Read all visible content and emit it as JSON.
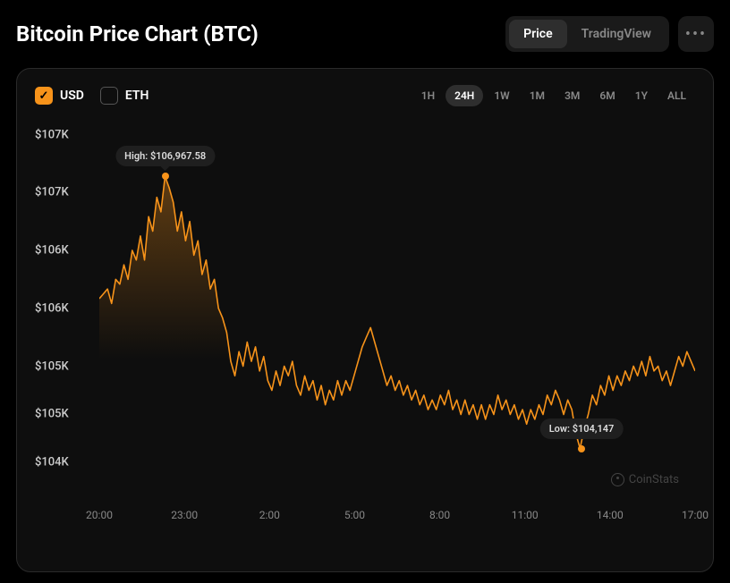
{
  "title": "Bitcoin Price Chart (BTC)",
  "view_tabs": {
    "price": "Price",
    "tradingview": "TradingView",
    "active": "price"
  },
  "currencies": [
    {
      "code": "USD",
      "checked": true
    },
    {
      "code": "ETH",
      "checked": false
    }
  ],
  "timeframes": [
    "1H",
    "24H",
    "1W",
    "1M",
    "3M",
    "6M",
    "1Y",
    "ALL"
  ],
  "active_timeframe": "24H",
  "watermark": "CoinStats",
  "chart": {
    "type": "line",
    "line_color": "#f7931a",
    "line_width": 1.6,
    "fill_gradient_top": "rgba(247,147,26,0.35)",
    "fill_gradient_bottom": "rgba(247,147,26,0)",
    "background": "#0e0e0e",
    "y_min": 103800,
    "y_max": 107600,
    "y_ticks": [
      {
        "v": 107400,
        "label": "$107K"
      },
      {
        "v": 106800,
        "label": "$107K"
      },
      {
        "v": 106200,
        "label": "$106K"
      },
      {
        "v": 105600,
        "label": "$106K"
      },
      {
        "v": 105000,
        "label": "$105K"
      },
      {
        "v": 104500,
        "label": "$105K"
      },
      {
        "v": 104000,
        "label": "$104K"
      }
    ],
    "x_ticks": [
      "20:00",
      "23:00",
      "2:00",
      "5:00",
      "8:00",
      "11:00",
      "14:00",
      "17:00"
    ],
    "high": {
      "label": "High: $106,967.58",
      "x_index": 16,
      "value": 106967.58
    },
    "low": {
      "label": "Low: $104,147",
      "x_index": 117,
      "value": 104147
    },
    "data": [
      105700,
      105750,
      105800,
      105650,
      105900,
      105850,
      106050,
      105900,
      106200,
      106100,
      106350,
      106100,
      106550,
      106400,
      106750,
      106600,
      106967,
      106850,
      106700,
      106400,
      106600,
      106300,
      106500,
      106150,
      106300,
      105950,
      106100,
      105800,
      105900,
      105600,
      105500,
      105350,
      105050,
      104900,
      105150,
      105000,
      105250,
      105050,
      105200,
      104950,
      105100,
      104850,
      104750,
      104950,
      104800,
      105000,
      104900,
      105050,
      104800,
      104700,
      104900,
      104750,
      104850,
      104650,
      104800,
      104600,
      104750,
      104650,
      104850,
      104700,
      104850,
      104750,
      104900,
      105050,
      105200,
      105300,
      105400,
      105250,
      105100,
      104950,
      104800,
      104900,
      104750,
      104850,
      104700,
      104800,
      104650,
      104750,
      104600,
      104700,
      104550,
      104650,
      104550,
      104700,
      104600,
      104750,
      104550,
      104650,
      104500,
      104650,
      104500,
      104600,
      104450,
      104600,
      104450,
      104600,
      104500,
      104700,
      104550,
      104650,
      104500,
      104600,
      104450,
      104550,
      104400,
      104550,
      104450,
      104600,
      104500,
      104700,
      104600,
      104750,
      104650,
      104500,
      104650,
      104550,
      104300,
      104147,
      104350,
      104500,
      104700,
      104600,
      104800,
      104700,
      104900,
      104750,
      104900,
      104800,
      104950,
      104850,
      105000,
      104900,
      105050,
      104900,
      105100,
      104950,
      105000,
      104850,
      104950,
      104800,
      104950,
      105100,
      105000,
      105150,
      105050,
      104950
    ]
  }
}
